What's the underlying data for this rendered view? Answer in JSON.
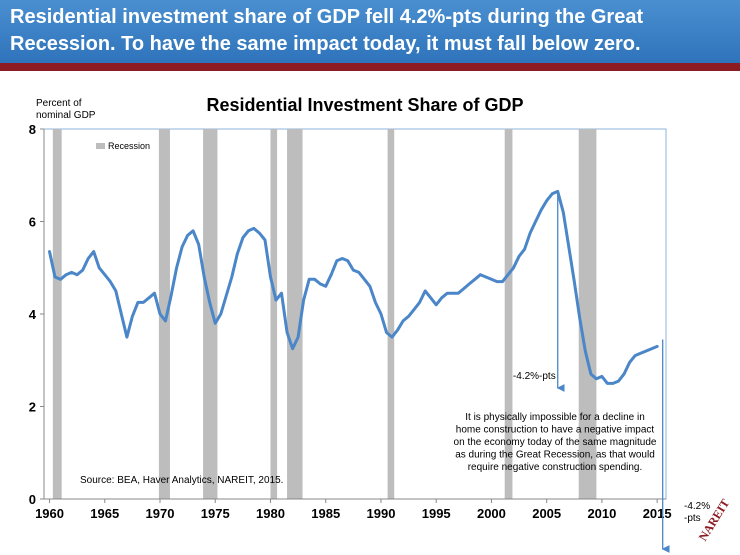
{
  "slide": {
    "title": "Residential investment share of GDP fell 4.2%-pts during the Great Recession. To have the same impact today, it must fall below zero."
  },
  "colors": {
    "banner": "#3a82c6",
    "accent_rule": "#8c1c22",
    "series": "#4a86c8",
    "recession": "#bdbdbd"
  },
  "logo_text": "NAREIT",
  "chart_data": {
    "type": "line",
    "title": "Residential Investment Share of GDP",
    "ylabel": "Percent of nominal GDP",
    "xlabel": "",
    "ylim": [
      0,
      8
    ],
    "xlim": [
      1959.5,
      2015.8
    ],
    "yticks": [
      0,
      2,
      4,
      6,
      8
    ],
    "xticks": [
      1960,
      1965,
      1970,
      1975,
      1980,
      1985,
      1990,
      1995,
      2000,
      2005,
      2010,
      2015
    ],
    "legend": {
      "entry": "Recession",
      "position": "top-left"
    },
    "recessions": [
      [
        1960.3,
        1961.1
      ],
      [
        1969.9,
        1970.9
      ],
      [
        1973.9,
        1975.2
      ],
      [
        1980.0,
        1980.6
      ],
      [
        1981.5,
        1982.9
      ],
      [
        1990.6,
        1991.2
      ],
      [
        2001.2,
        2001.9
      ],
      [
        2007.9,
        2009.5
      ]
    ],
    "series": [
      {
        "x": [
          1960.0,
          1960.5,
          1961.0,
          1961.5,
          1962.0,
          1962.5,
          1963.0,
          1963.5,
          1964.0,
          1964.5,
          1965.0,
          1965.5,
          1966.0,
          1966.5,
          1967.0,
          1967.5,
          1968.0,
          1968.5,
          1969.0,
          1969.5,
          1970.0,
          1970.5,
          1971.0,
          1971.5,
          1972.0,
          1972.5,
          1973.0,
          1973.5,
          1974.0,
          1974.5,
          1975.0,
          1975.5,
          1976.0,
          1976.5,
          1977.0,
          1977.5,
          1978.0,
          1978.5,
          1979.0,
          1979.5,
          1980.0,
          1980.5,
          1981.0,
          1981.5,
          1982.0,
          1982.5,
          1983.0,
          1983.5,
          1984.0,
          1984.5,
          1985.0,
          1985.5,
          1986.0,
          1986.5,
          1987.0,
          1987.5,
          1988.0,
          1988.5,
          1989.0,
          1989.5,
          1990.0,
          1990.5,
          1991.0,
          1991.5,
          1992.0,
          1992.5,
          1993.0,
          1993.5,
          1994.0,
          1994.5,
          1995.0,
          1995.5,
          1996.0,
          1996.5,
          1997.0,
          1997.5,
          1998.0,
          1998.5,
          1999.0,
          1999.5,
          2000.0,
          2000.5,
          2001.0,
          2001.5,
          2002.0,
          2002.5,
          2003.0,
          2003.5,
          2004.0,
          2004.5,
          2005.0,
          2005.5,
          2006.0,
          2006.5,
          2007.0,
          2007.5,
          2008.0,
          2008.5,
          2009.0,
          2009.5,
          2010.0,
          2010.5,
          2011.0,
          2011.5,
          2012.0,
          2012.5,
          2013.0,
          2013.5,
          2014.0,
          2014.5,
          2015.0
        ],
        "values": [
          5.35,
          4.8,
          4.75,
          4.85,
          4.9,
          4.85,
          4.95,
          5.2,
          5.35,
          5.0,
          4.85,
          4.7,
          4.5,
          4.0,
          3.5,
          3.95,
          4.25,
          4.25,
          4.35,
          4.45,
          4.0,
          3.85,
          4.4,
          5.0,
          5.45,
          5.7,
          5.8,
          5.5,
          4.8,
          4.25,
          3.8,
          4.0,
          4.4,
          4.8,
          5.3,
          5.65,
          5.8,
          5.85,
          5.75,
          5.6,
          4.8,
          4.3,
          4.45,
          3.6,
          3.25,
          3.5,
          4.3,
          4.75,
          4.75,
          4.65,
          4.6,
          4.85,
          5.15,
          5.2,
          5.15,
          4.95,
          4.9,
          4.75,
          4.6,
          4.25,
          4.0,
          3.6,
          3.5,
          3.65,
          3.85,
          3.95,
          4.1,
          4.25,
          4.5,
          4.35,
          4.2,
          4.35,
          4.45,
          4.45,
          4.45,
          4.55,
          4.65,
          4.75,
          4.85,
          4.8,
          4.75,
          4.7,
          4.7,
          4.85,
          5.0,
          5.25,
          5.4,
          5.75,
          6.0,
          6.25,
          6.45,
          6.6,
          6.65,
          6.2,
          5.45,
          4.7,
          3.9,
          3.2,
          2.7,
          2.6,
          2.65,
          2.5,
          2.5,
          2.55,
          2.7,
          2.95,
          3.1,
          3.15,
          3.2,
          3.25,
          3.3
        ]
      }
    ],
    "annotations": {
      "drop_label": "-4.2%-pts",
      "drop_arrow": {
        "x": 2006.0,
        "from": 6.6,
        "to": 2.4
      },
      "future_label": "-4.2%\n-pts",
      "future_arrow": {
        "x": 2015.5,
        "from": 3.45,
        "to": -0.75
      },
      "note": "It is physically impossible for a decline in\nhome construction to have a negative impact\non the economy today of the same magnitude\nas during the Great Recession, as that would\nrequire negative construction spending.",
      "source": "Source:  BEA, Haver Analytics, NAREIT, 2015."
    }
  }
}
